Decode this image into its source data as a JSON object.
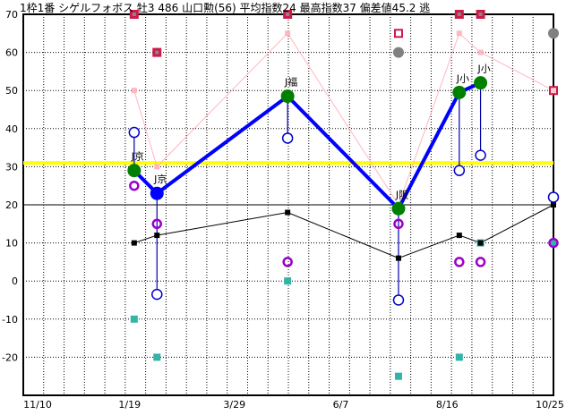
{
  "title": "1枠1番 シゲルフォボス 牡3 486 山口勲(56) 平均指数24 最高指数37 偏差値45.2 逃",
  "chart_data": {
    "type": "line",
    "title": "1枠1番 シゲルフォボス 牡3 486 山口勲(56) 平均指数24 最高指数37 偏差値45.2 逃",
    "xlabel": "",
    "ylabel": "",
    "ylim": [
      -30,
      70
    ],
    "xlim": [
      "11/10",
      "10/25"
    ],
    "grid": true,
    "y_ticks": [
      "70",
      "60",
      "50",
      "40",
      "30",
      "20",
      "10",
      "0",
      "-10",
      "-20"
    ],
    "x_ticks": [
      "11/10",
      "1/19",
      "3/29",
      "6/7",
      "8/16",
      "10/25"
    ],
    "reference_lines": [
      {
        "value": 31,
        "color": "#ffff00"
      },
      {
        "value": 20,
        "color": "#000000"
      }
    ],
    "races": [
      {
        "date": "1/22",
        "label": "J京",
        "index": 29,
        "index_color": "#008000",
        "upper": 39,
        "purple": 25,
        "black": 10,
        "teal": -10,
        "pink": 50,
        "red": 70
      },
      {
        "date": "2/6",
        "label": "J京",
        "index": 23,
        "index_color": "#0000ff",
        "upper": -3.5,
        "purple": 15,
        "black": 12,
        "teal": -20,
        "pink": 30,
        "red": 60
      },
      {
        "date": "5/3",
        "label": "J福",
        "index": 48.5,
        "index_color": "#008000",
        "upper": 37.5,
        "purple": 5,
        "black": 18,
        "teal": 0,
        "pink": 65,
        "red": 70
      },
      {
        "date": "7/15",
        "label": "J阪",
        "index": 19,
        "index_color": "#008000",
        "upper": -5,
        "purple": 15,
        "black": 6,
        "teal": -25,
        "pink": 20,
        "red_outline": 65,
        "gray": 60
      },
      {
        "date": "8/24",
        "label": "J小",
        "index": 49.5,
        "index_color": "#008000",
        "upper": 29,
        "purple": 5,
        "black": 12,
        "teal": -20,
        "pink": 65,
        "red": 70
      },
      {
        "date": "9/7",
        "label": "J小",
        "index": 52,
        "index_color": "#008000",
        "upper": 33,
        "purple": 5,
        "black": 10,
        "teal": 10,
        "pink": 60,
        "red": 70
      }
    ],
    "forecast": {
      "date": "10/25",
      "upper": 22,
      "purple": 10,
      "teal": 10,
      "black": 20,
      "pink": 50,
      "gray": 65
    },
    "colors": {
      "main_line": "#0000ff",
      "pink_line": "#ffb6c1",
      "red_marker": "#cc1a4a",
      "purple": "#9900cc",
      "teal": "#33b3aa",
      "gray": "#808080",
      "yellow": "#ffff00"
    }
  }
}
